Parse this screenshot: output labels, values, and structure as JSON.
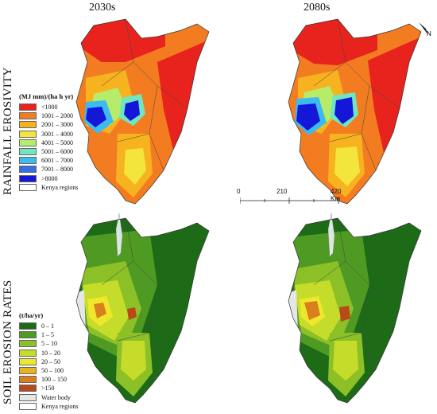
{
  "columns": [
    "2030s",
    "2080s"
  ],
  "rows": [
    "RAINFALL EROSIVITY",
    "SOIL EROSION RATES"
  ],
  "north_label": "N",
  "scale": {
    "ticks": [
      "0",
      "210",
      "420 Km"
    ]
  },
  "legend_erosivity": {
    "title": "(MJ mm)/(ha h yr)",
    "items": [
      {
        "label": "<1000",
        "color": "#e8231e"
      },
      {
        "label": "1001 – 2000",
        "color": "#f47c20"
      },
      {
        "label": "2001 – 3000",
        "color": "#f7b21f"
      },
      {
        "label": "3001 – 4000",
        "color": "#f3e53b"
      },
      {
        "label": "4001 – 5000",
        "color": "#b7ec6a"
      },
      {
        "label": "5001 – 6000",
        "color": "#6fe6c0"
      },
      {
        "label": "6001 – 7000",
        "color": "#3cbbf0"
      },
      {
        "label": "7001 – 8000",
        "color": "#3a6de0"
      },
      {
        "label": ">8000",
        "color": "#1416d8"
      },
      {
        "label": "Kenya regions",
        "color": "#ffffff"
      }
    ]
  },
  "legend_soil": {
    "title": "(t/ha/yr)",
    "items": [
      {
        "label": "0 – 1",
        "color": "#1d6b17"
      },
      {
        "label": "1 – 5",
        "color": "#4f9a22"
      },
      {
        "label": "5 – 10",
        "color": "#8cc027"
      },
      {
        "label": "10 – 20",
        "color": "#c6dc2a"
      },
      {
        "label": "20 – 50",
        "color": "#eee82c"
      },
      {
        "label": "50 – 100",
        "color": "#e9b21f"
      },
      {
        "label": "100 – 150",
        "color": "#d97f1e"
      },
      {
        "label": ">150",
        "color": "#b84a1a"
      },
      {
        "label": "Water body",
        "color": "#e6e6e6"
      },
      {
        "label": "Kenya regions",
        "color": "#ffffff"
      }
    ]
  }
}
